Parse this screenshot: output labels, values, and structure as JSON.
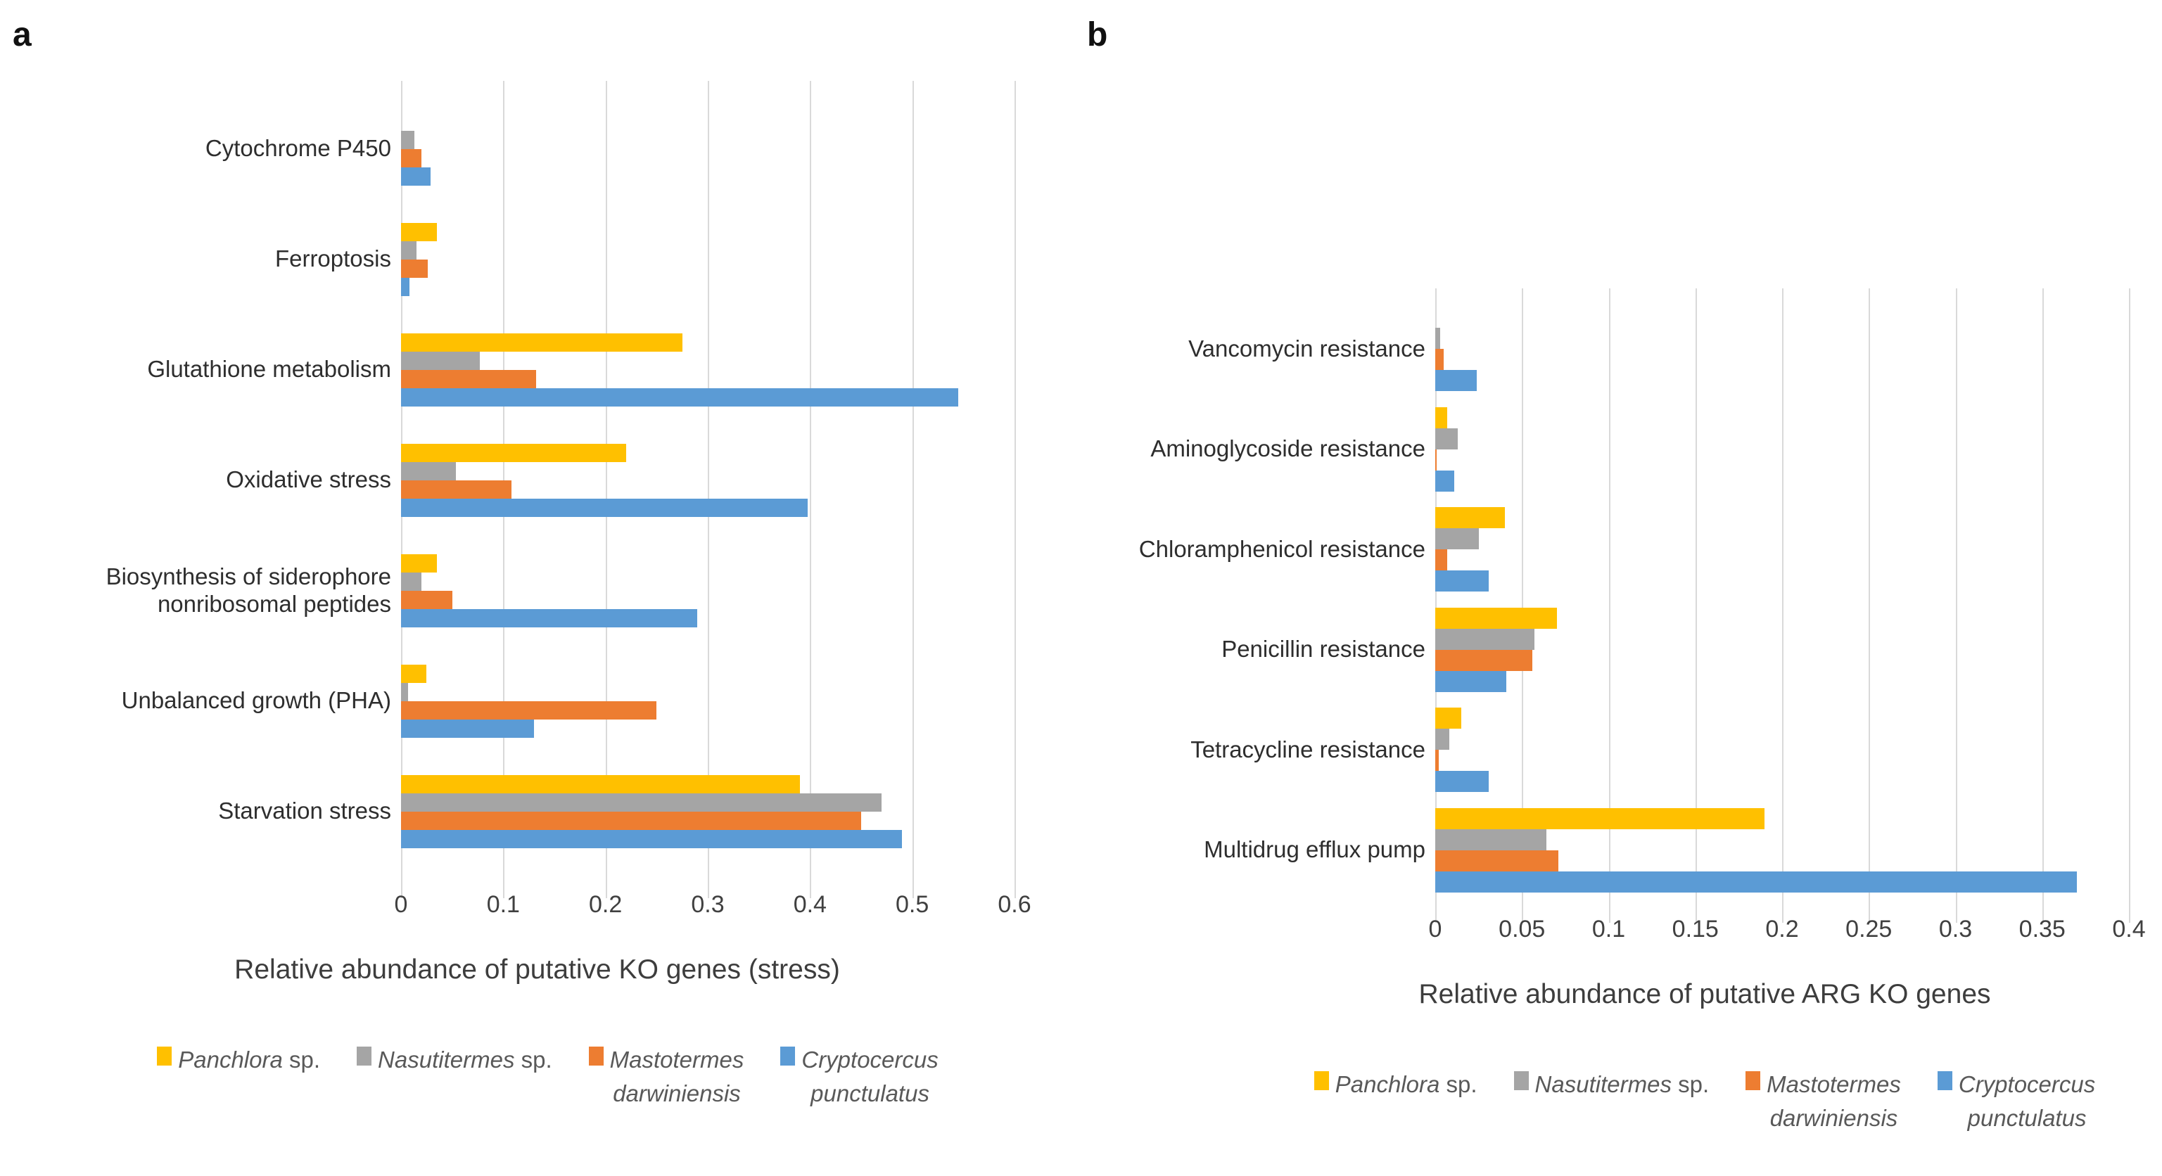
{
  "figure": {
    "panel_a_label": "a",
    "panel_b_label": "b"
  },
  "legend": {
    "items": [
      {
        "name": "Panchlora",
        "suffix": " sp.",
        "color": "#FFC000"
      },
      {
        "name": "Nasutitermes",
        "suffix": " sp.",
        "color": "#A5A5A5"
      },
      {
        "name": "Mastotermes",
        "line2": "darwiniensis",
        "color": "#ED7D31"
      },
      {
        "name": "Cryptocercus",
        "line2": "punctulatus",
        "color": "#5B9BD5"
      }
    ]
  },
  "chart_data": [
    {
      "type": "bar",
      "orientation": "horizontal",
      "panel": "a",
      "title": "Relative abundance of putative KO genes (stress)",
      "categories": [
        "Cytochrome P450",
        "Ferroptosis",
        "Glutathione metabolism",
        "Oxidative stress",
        "Biosynthesis of siderophore\nnonribosomal peptides",
        "Unbalanced growth (PHA)",
        "Starvation stress"
      ],
      "series": [
        {
          "name": "Panchlora sp.",
          "color": "#FFC000",
          "values": [
            0,
            0.035,
            0.275,
            0.22,
            0.035,
            0.025,
            0.39
          ]
        },
        {
          "name": "Nasutitermes sp.",
          "color": "#A5A5A5",
          "values": [
            0.013,
            0.015,
            0.077,
            0.054,
            0.02,
            0.007,
            0.47
          ]
        },
        {
          "name": "Mastotermes darwiniensis",
          "color": "#ED7D31",
          "values": [
            0.02,
            0.026,
            0.132,
            0.108,
            0.05,
            0.25,
            0.45
          ]
        },
        {
          "name": "Cryptocercus punctulatus",
          "color": "#5B9BD5",
          "values": [
            0.029,
            0.008,
            0.545,
            0.398,
            0.29,
            0.13,
            0.49
          ]
        }
      ],
      "xlim": [
        0,
        0.6
      ],
      "xticks": [
        0,
        0.1,
        0.2,
        0.3,
        0.4,
        0.5,
        0.6
      ],
      "xtick_labels": [
        "0",
        "0.1",
        "0.2",
        "0.3",
        "0.4",
        "0.5",
        "0.6"
      ],
      "grid": true,
      "legend_position": "bottom"
    },
    {
      "type": "bar",
      "orientation": "horizontal",
      "panel": "b",
      "title": "Relative abundance of putative ARG KO genes",
      "categories": [
        "Vancomycin resistance",
        "Aminoglycoside resistance",
        "Chloramphenicol resistance",
        "Penicillin resistance",
        "Tetracycline resistance",
        "Multidrug efflux pump"
      ],
      "series": [
        {
          "name": "Panchlora sp.",
          "color": "#FFC000",
          "values": [
            0,
            0.007,
            0.04,
            0.07,
            0.015,
            0.19
          ]
        },
        {
          "name": "Nasutitermes sp.",
          "color": "#A5A5A5",
          "values": [
            0.003,
            0.013,
            0.025,
            0.057,
            0.008,
            0.064
          ]
        },
        {
          "name": "Mastotermes darwiniensis",
          "color": "#ED7D31",
          "values": [
            0.005,
            0.001,
            0.007,
            0.056,
            0.002,
            0.071
          ]
        },
        {
          "name": "Cryptocercus punctulatus",
          "color": "#5B9BD5",
          "values": [
            0.024,
            0.011,
            0.031,
            0.041,
            0.031,
            0.37
          ]
        }
      ],
      "xlim": [
        0,
        0.4
      ],
      "xticks": [
        0,
        0.05,
        0.1,
        0.15,
        0.2,
        0.25,
        0.3,
        0.35,
        0.4
      ],
      "xtick_labels": [
        "0",
        "0.05",
        "0.1",
        "0.15",
        "0.2",
        "0.25",
        "0.3",
        "0.35",
        "0.4"
      ],
      "grid": true,
      "legend_position": "bottom"
    }
  ]
}
